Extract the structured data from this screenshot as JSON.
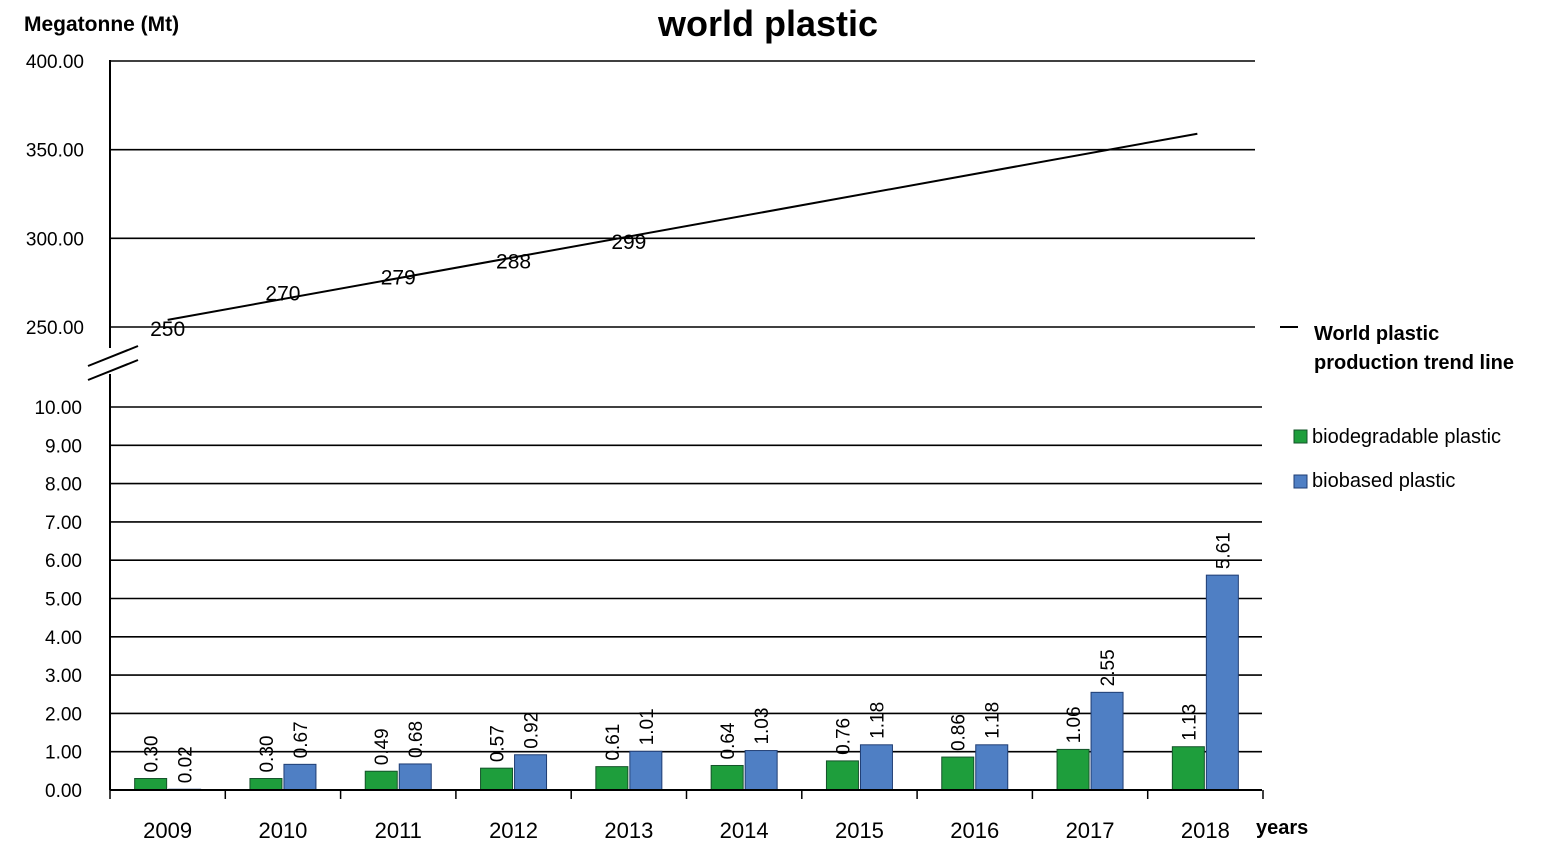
{
  "chart_data": {
    "type": "bar",
    "title": "world plastic",
    "ylabel": "Megatonne (Mt)",
    "xlabel": "years",
    "categories": [
      "2009",
      "2010",
      "2011",
      "2012",
      "2013",
      "2014",
      "2015",
      "2016",
      "2017",
      "2018"
    ],
    "y_axis_broken": true,
    "upper_axis": {
      "ylim": [
        250,
        400
      ],
      "ticks": [
        "250.00",
        "300.00",
        "350.00",
        "400.00"
      ]
    },
    "lower_axis": {
      "ylim": [
        0,
        10
      ],
      "ticks": [
        "0.00",
        "1.00",
        "2.00",
        "3.00",
        "4.00",
        "5.00",
        "6.00",
        "7.00",
        "8.00",
        "9.00",
        "10.00"
      ]
    },
    "series": [
      {
        "name": "biodegradable plastic",
        "color": "#1e9e3c",
        "values": [
          0.3,
          0.3,
          0.49,
          0.57,
          0.61,
          0.64,
          0.76,
          0.86,
          1.06,
          1.13
        ],
        "labels": [
          "0.30",
          "0.30",
          "0.49",
          "0.57",
          "0.61",
          "0.64",
          "0.76",
          "0.86",
          "1.06",
          "1.13"
        ]
      },
      {
        "name": "biobased plastic",
        "color": "#4f7fc4",
        "values": [
          0.02,
          0.67,
          0.68,
          0.92,
          1.01,
          1.03,
          1.18,
          1.18,
          2.55,
          5.61
        ],
        "labels": [
          "0.02",
          "0.67",
          "0.68",
          "0.92",
          "1.01",
          "1.03",
          "1.18",
          "1.18",
          "2.55",
          "5.61"
        ]
      }
    ],
    "world_production": {
      "values": [
        250,
        270,
        279,
        288,
        299
      ],
      "labels": [
        "250",
        "270",
        "279",
        "288",
        "299"
      ],
      "years": [
        "2009",
        "2010",
        "2011",
        "2012",
        "2013"
      ]
    },
    "trend_line": {
      "name_lines": [
        "World plastic",
        "production trend line"
      ],
      "start": {
        "x": "2009",
        "y": 254
      },
      "end": {
        "x": "2018",
        "y": 359
      },
      "color": "#000000"
    },
    "legend_position": "right",
    "grid": true
  }
}
